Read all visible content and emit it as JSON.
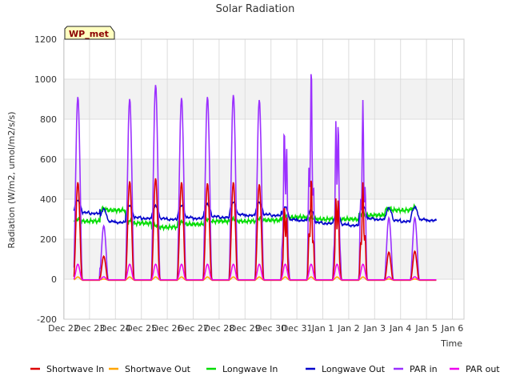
{
  "chart_data": {
    "type": "line",
    "title": "Solar Radiation",
    "xlabel": "Time",
    "ylabel": "Radiation (W/m2, umol/m2/s/s)",
    "badge": "WP_met",
    "ylim": [
      -200,
      1200
    ],
    "xlim": [
      0,
      15
    ],
    "yticks": [
      -200,
      0,
      200,
      400,
      600,
      800,
      1000,
      1200
    ],
    "xticks": [
      {
        "x": 0,
        "label": "Dec 22"
      },
      {
        "x": 1,
        "label": "Dec 23"
      },
      {
        "x": 2,
        "label": "Dec 24"
      },
      {
        "x": 3,
        "label": "Dec 25"
      },
      {
        "x": 4,
        "label": "Dec 26"
      },
      {
        "x": 5,
        "label": "Dec 27"
      },
      {
        "x": 6,
        "label": "Dec 28"
      },
      {
        "x": 7,
        "label": "Dec 29"
      },
      {
        "x": 8,
        "label": "Dec 30"
      },
      {
        "x": 9,
        "label": "Dec 31"
      },
      {
        "x": 10,
        "label": "Jan 1"
      },
      {
        "x": 11,
        "label": "Jan 2"
      },
      {
        "x": 12,
        "label": "Jan 3"
      },
      {
        "x": 13,
        "label": "Jan 4"
      },
      {
        "x": 14,
        "label": "Jan 5"
      },
      {
        "x": 15,
        "label": "Jan 6"
      }
    ],
    "grid": true,
    "legend_position": "bottom",
    "start": 0.4,
    "end": 14.4,
    "days": [
      {
        "sw": 490,
        "par": 915,
        "lwin": 290,
        "lwout": 395
      },
      {
        "sw": 120,
        "par": 270,
        "lwin": 345,
        "lwout": 350
      },
      {
        "sw": 495,
        "par": 905,
        "lwin": 280,
        "lwout": 370
      },
      {
        "sw": 510,
        "par": 975,
        "lwin": 260,
        "lwout": 365
      },
      {
        "sw": 490,
        "par": 910,
        "lwin": 275,
        "lwout": 370
      },
      {
        "sw": 485,
        "par": 915,
        "lwin": 290,
        "lwout": 375
      },
      {
        "sw": 490,
        "par": 925,
        "lwin": 290,
        "lwout": 385
      },
      {
        "sw": 480,
        "par": 900,
        "lwin": 295,
        "lwout": 385
      },
      {
        "sw": 430,
        "par": 845,
        "lwin": 310,
        "lwout": 360
      },
      {
        "sw": 520,
        "par": 1075,
        "lwin": 300,
        "lwout": 345
      },
      {
        "sw": 500,
        "par": 935,
        "lwin": 300,
        "lwout": 335
      },
      {
        "sw": 490,
        "par": 900,
        "lwin": 320,
        "lwout": 365
      },
      {
        "sw": 140,
        "par": 310,
        "lwin": 345,
        "lwout": 355
      },
      {
        "sw": 145,
        "par": 310,
        "lwin": 350,
        "lwout": 360
      }
    ],
    "series": [
      {
        "name": "Shortwave In",
        "color": "#dd0000",
        "key": "sw"
      },
      {
        "name": "Shortwave Out",
        "color": "#ffa500",
        "key": "swout"
      },
      {
        "name": "Longwave In",
        "color": "#00dd00",
        "key": "lwin"
      },
      {
        "name": "Longwave Out",
        "color": "#0000cc",
        "key": "lwout"
      },
      {
        "name": "PAR in",
        "color": "#9b30ff",
        "key": "par"
      },
      {
        "name": "PAR out",
        "color": "#ee00ee",
        "key": "parout"
      }
    ]
  }
}
